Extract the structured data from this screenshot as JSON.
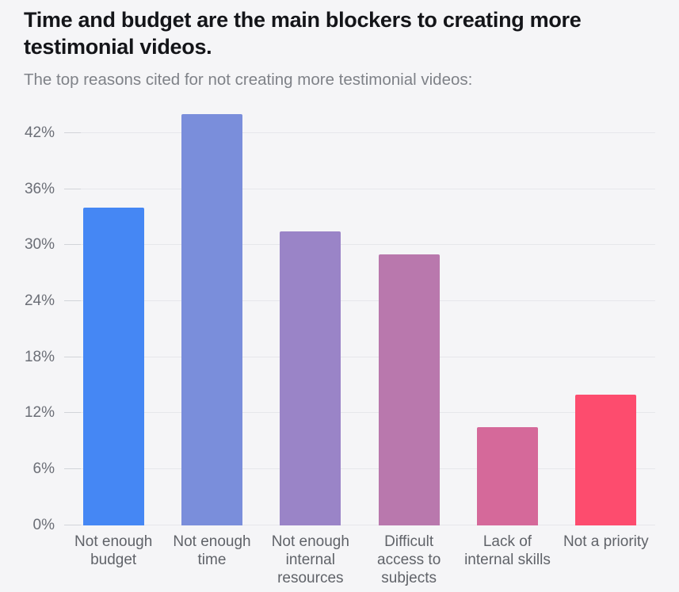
{
  "header": {
    "title": "Time and budget are the main blockers to creating more testimonial videos.",
    "subtitle": "The top reasons cited for not creating more testimonial videos:"
  },
  "chart_data": {
    "type": "bar",
    "title": "Time and budget are the main blockers to creating more testimonial videos.",
    "subtitle": "The top reasons cited for not creating more testimonial videos:",
    "categories": [
      "Not enough budget",
      "Not enough time",
      "Not enough internal resources",
      "Difficult access to subjects",
      "Lack of internal skills",
      "Not a priority"
    ],
    "values": [
      34,
      44,
      31.5,
      29,
      10.5,
      14
    ],
    "bar_colors": [
      "#4587f4",
      "#7a8edb",
      "#9a84c7",
      "#b978ad",
      "#d5699a",
      "#fd4c6e"
    ],
    "xlabel": "",
    "ylabel": "",
    "ylim": [
      0,
      45
    ],
    "ytick_values": [
      0,
      6,
      12,
      18,
      24,
      30,
      36,
      42
    ],
    "ytick_labels": [
      "0%",
      "6%",
      "12%",
      "18%",
      "24%",
      "30%",
      "36%",
      "42%"
    ],
    "grid": "horizontal",
    "legend": "none",
    "background_color": "#f5f5f7",
    "gridline_color": "#e6e7eb",
    "axis_label_color": "#6b6e76"
  }
}
